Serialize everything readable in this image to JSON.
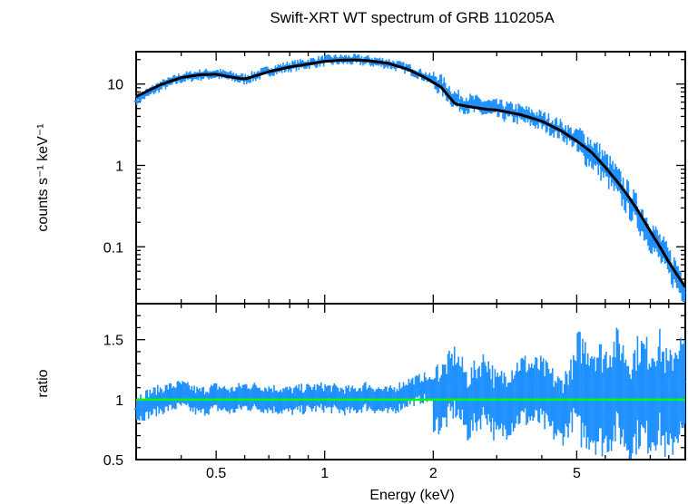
{
  "chart_data": [
    {
      "type": "scatter",
      "panel": "spectrum",
      "title": "Swift-XRT WT spectrum of GRB 110205A",
      "xlabel": "Energy (keV)",
      "ylabel": "counts s⁻¹ keV⁻¹",
      "x_scale": "log",
      "y_scale": "log",
      "xlim": [
        0.3,
        10
      ],
      "ylim": [
        0.02,
        25
      ],
      "y_tick_labels": [
        "0.1",
        "1",
        "10"
      ],
      "y_ticks": [
        0.1,
        1,
        10
      ],
      "series": [
        {
          "role": "data",
          "color": "#1e90ff",
          "x": [
            0.3,
            0.35,
            0.4,
            0.45,
            0.5,
            0.55,
            0.6,
            0.7,
            0.8,
            0.9,
            1.0,
            1.1,
            1.2,
            1.3,
            1.5,
            1.7,
            1.9,
            2.1,
            2.3,
            2.5,
            2.8,
            3.0,
            3.5,
            4.0,
            4.5,
            5.0,
            5.5,
            6.0,
            6.5,
            7.0,
            7.5,
            8.0,
            8.5,
            9.0,
            9.5,
            10.0
          ],
          "y": [
            6.5,
            9.5,
            12,
            13,
            13.5,
            12.5,
            11.5,
            14.5,
            16.5,
            18,
            19.5,
            20,
            20,
            19.5,
            18,
            15.5,
            12.5,
            10,
            6.5,
            5.8,
            5.2,
            4.9,
            4.3,
            3.6,
            2.8,
            2.1,
            1.5,
            1.0,
            0.62,
            0.38,
            0.24,
            0.15,
            0.1,
            0.065,
            0.045,
            0.032
          ]
        },
        {
          "role": "model",
          "color": "#000000",
          "x": [
            0.3,
            0.35,
            0.4,
            0.45,
            0.5,
            0.55,
            0.6,
            0.7,
            0.8,
            0.9,
            1.0,
            1.1,
            1.2,
            1.3,
            1.5,
            1.7,
            1.9,
            2.1,
            2.3,
            2.5,
            2.8,
            3.0,
            3.5,
            4.0,
            4.5,
            5.0,
            5.5,
            6.0,
            6.5,
            7.0,
            7.5,
            8.0,
            8.5,
            9.0,
            9.5,
            10.0
          ],
          "y": [
            7.0,
            9.8,
            12,
            13,
            13.2,
            12.2,
            11.5,
            14.2,
            16.2,
            17.6,
            19,
            19.6,
            19.8,
            19.5,
            18,
            15.2,
            12,
            9.2,
            5.7,
            5.3,
            4.9,
            4.8,
            4.2,
            3.5,
            2.7,
            2.0,
            1.45,
            0.95,
            0.62,
            0.4,
            0.25,
            0.155,
            0.1,
            0.065,
            0.045,
            0.032
          ]
        }
      ]
    },
    {
      "type": "scatter",
      "panel": "ratio",
      "xlabel": "Energy (keV)",
      "ylabel": "ratio",
      "x_scale": "log",
      "xlim": [
        0.3,
        10
      ],
      "ylim": [
        0.5,
        1.8
      ],
      "y_tick_labels": [
        "0.5",
        "1",
        "1.5"
      ],
      "y_ticks": [
        0.5,
        1,
        1.5
      ],
      "x_tick_labels": [
        "0.5",
        "1",
        "2",
        "5"
      ],
      "x_ticks": [
        0.5,
        1,
        2,
        5
      ],
      "reference_line": {
        "y": 1,
        "color": "#00ff00"
      },
      "series": [
        {
          "role": "ratio",
          "color": "#1e90ff",
          "x": [
            0.3,
            0.35,
            0.4,
            0.45,
            0.5,
            0.55,
            0.6,
            0.7,
            0.8,
            0.9,
            1.0,
            1.1,
            1.2,
            1.3,
            1.5,
            1.7,
            1.9,
            2.1,
            2.3,
            2.5,
            2.8,
            3.0,
            3.5,
            4.0,
            4.5,
            5.0,
            5.5,
            6.0,
            6.5,
            7.0,
            7.5,
            8.0,
            8.5,
            9.0,
            9.5,
            10.0
          ],
          "y": [
            0.93,
            1.0,
            1.04,
            0.98,
            1.02,
            0.99,
            1.03,
            1.01,
            0.99,
            1.01,
            1.02,
            1.0,
            0.99,
            1.03,
            0.98,
            1.06,
            1.1,
            1.0,
            1.15,
            0.95,
            1.12,
            0.92,
            1.08,
            1.05,
            0.9,
            1.1,
            1.05,
            1.0,
            1.12,
            0.95,
            1.08,
            1.02,
            1.1,
            0.9,
            1.1,
            1.05
          ]
        }
      ]
    }
  ],
  "colors": {
    "data": "#1e90ff",
    "model": "#000000",
    "reference": "#00ff00"
  }
}
